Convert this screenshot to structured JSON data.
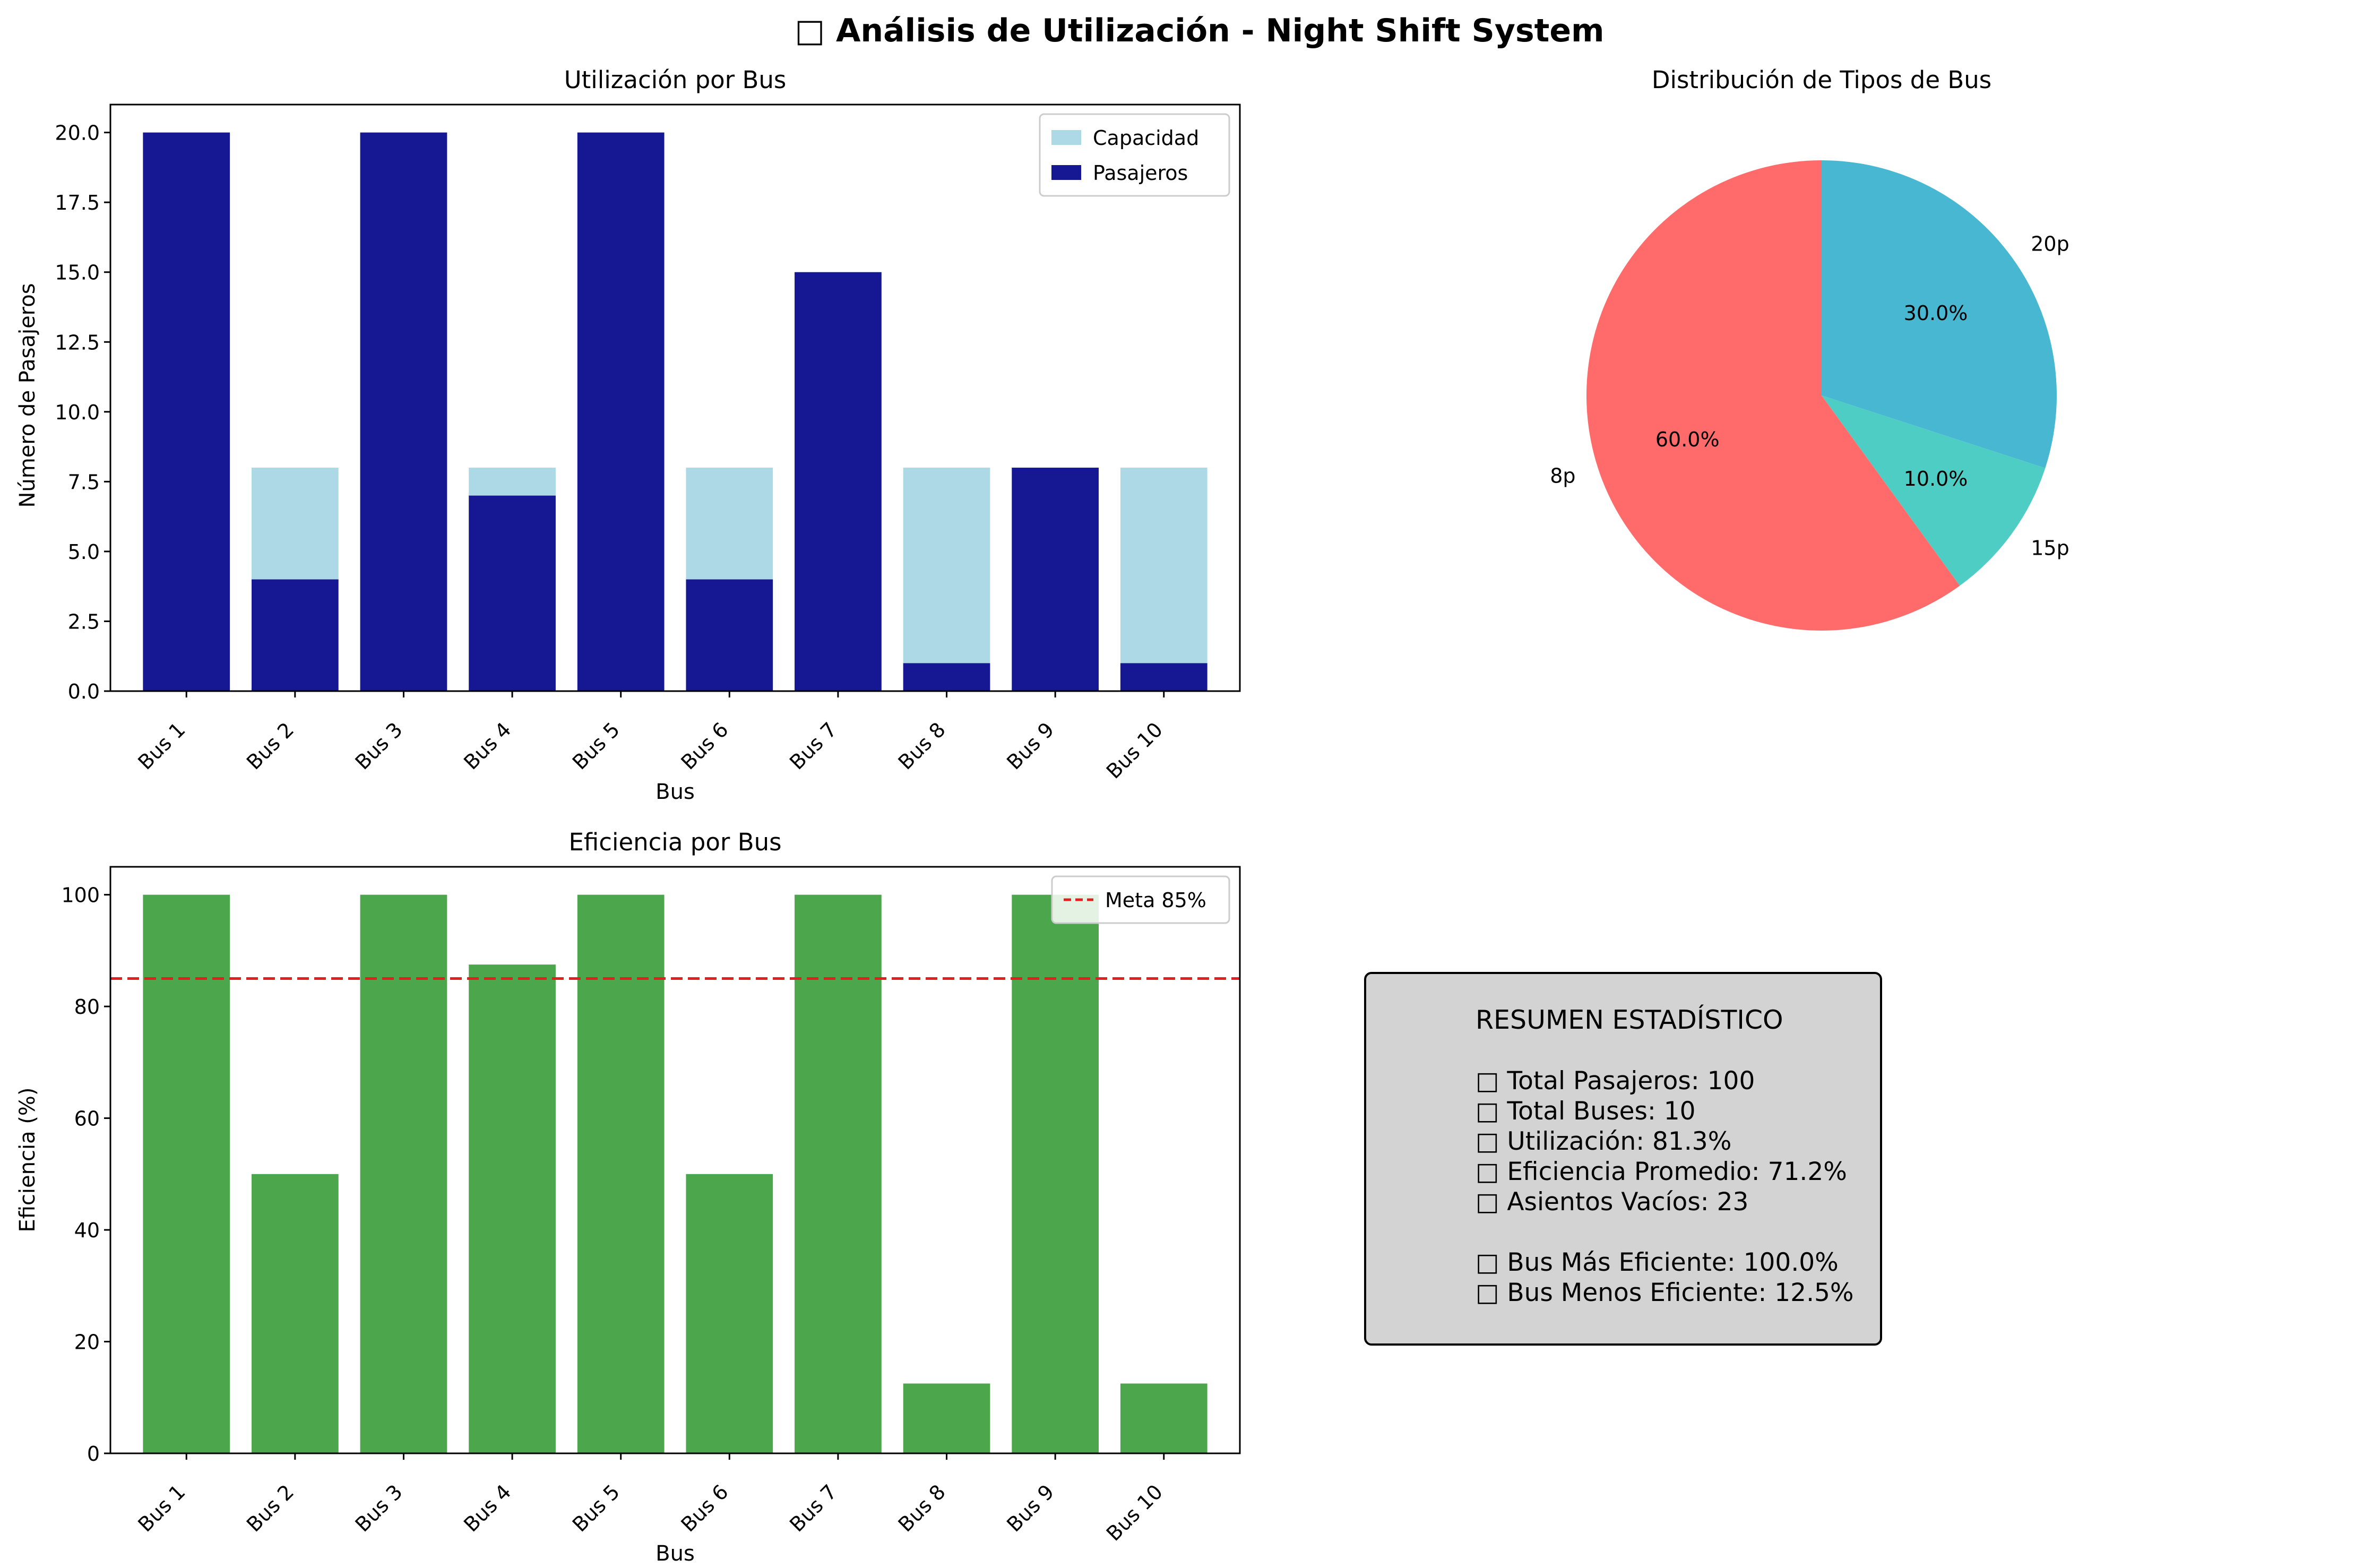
{
  "figure_title": "□ Análisis de Utilización - Night Shift System",
  "chart_data": [
    {
      "type": "bar",
      "title": "Utilización por Bus",
      "xlabel": "Bus",
      "ylabel": "Número de Pasajeros",
      "categories": [
        "Bus 1",
        "Bus 2",
        "Bus 3",
        "Bus 4",
        "Bus 5",
        "Bus 6",
        "Bus 7",
        "Bus 8",
        "Bus 9",
        "Bus 10"
      ],
      "series": [
        {
          "name": "Capacidad",
          "color": "#add8e6",
          "values": [
            20,
            8,
            20,
            8,
            20,
            8,
            15,
            8,
            8,
            8
          ]
        },
        {
          "name": "Pasajeros",
          "color": "#151793",
          "values": [
            20,
            4,
            20,
            7,
            20,
            4,
            15,
            1,
            8,
            1
          ]
        }
      ],
      "ylim": [
        0,
        21
      ],
      "yticks": [
        "0.0",
        "2.5",
        "5.0",
        "7.5",
        "10.0",
        "12.5",
        "15.0",
        "17.5",
        "20.0"
      ],
      "legend": "top-right",
      "grid": false
    },
    {
      "type": "pie",
      "title": "Distribución de Tipos de Bus",
      "slices": [
        {
          "label": "20p",
          "value": 30.0,
          "pct": "30.0%",
          "color": "#47b7d2"
        },
        {
          "label": "15p",
          "value": 10.0,
          "pct": "10.0%",
          "color": "#4ecdc4"
        },
        {
          "label": "8p",
          "value": 60.0,
          "pct": "60.0%",
          "color": "#ff6b6b"
        }
      ],
      "start_angle_deg": 90,
      "direction": "clockwise"
    },
    {
      "type": "bar",
      "title": "Eficiencia por Bus",
      "xlabel": "Bus",
      "ylabel": "Eficiencia (%)",
      "categories": [
        "Bus 1",
        "Bus 2",
        "Bus 3",
        "Bus 4",
        "Bus 5",
        "Bus 6",
        "Bus 7",
        "Bus 8",
        "Bus 9",
        "Bus 10"
      ],
      "series": [
        {
          "name": "",
          "color": "#4ca64c",
          "values": [
            100,
            50,
            100,
            87.5,
            100,
            50,
            100,
            12.5,
            100,
            12.5
          ]
        }
      ],
      "reference_line": {
        "name": "Meta 85%",
        "value": 85,
        "color": "#e0201f",
        "style": "dashed"
      },
      "ylim": [
        0,
        105
      ],
      "yticks": [
        "0",
        "20",
        "40",
        "60",
        "80",
        "100"
      ],
      "legend": "top-right",
      "grid": false
    }
  ],
  "summary": {
    "title": "RESUMEN ESTADÍSTICO",
    "lines": [
      "□ Total Pasajeros: 100",
      "□ Total Buses: 10",
      "□ Utilización: 81.3%",
      "□ Eficiencia Promedio: 71.2%",
      "□ Asientos Vacíos: 23",
      "",
      "□ Bus Más Eficiente: 100.0%",
      "□ Bus Menos Eficiente: 12.5%"
    ]
  }
}
